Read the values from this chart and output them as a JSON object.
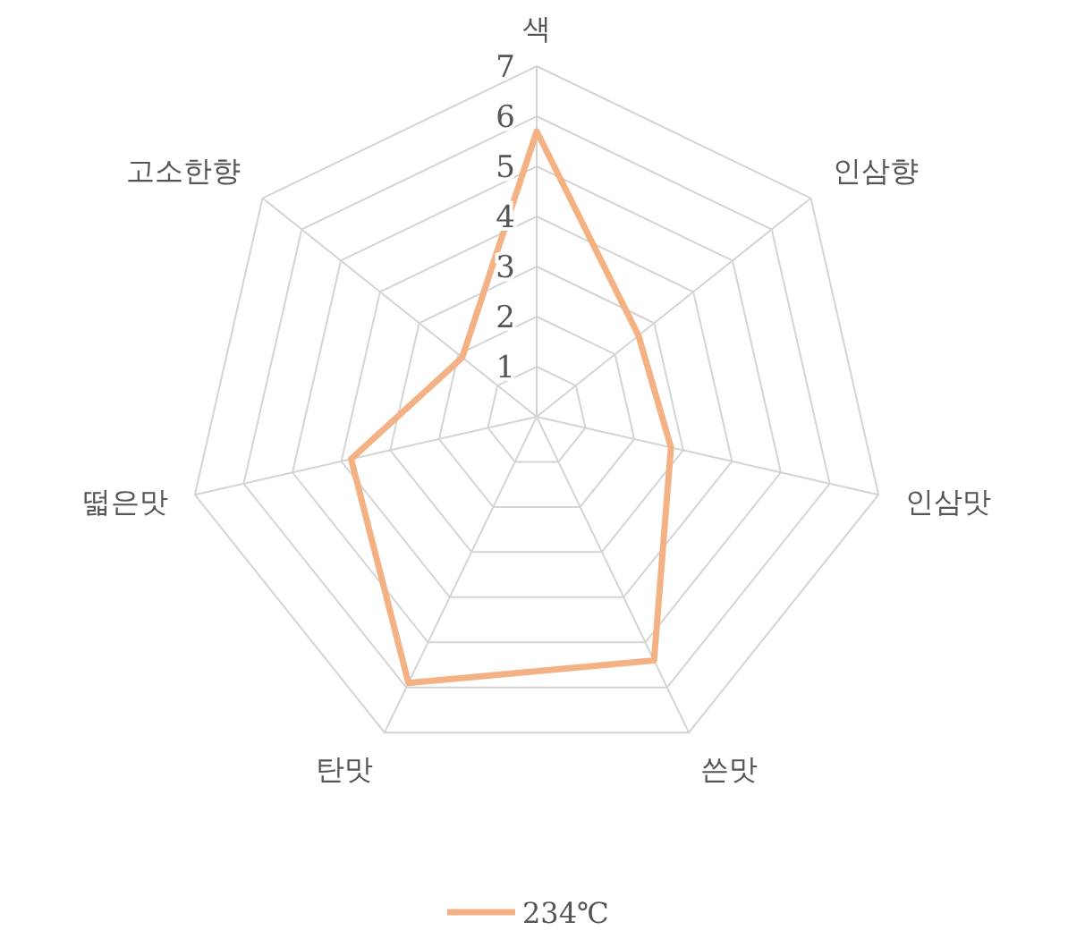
{
  "chart_data": {
    "type": "radar",
    "categories": [
      "색",
      "인삼향",
      "인삼맛",
      "쓴맛",
      "탄맛",
      "떫은맛",
      "고소한향"
    ],
    "series": [
      {
        "name": "234℃",
        "color": "#f4b183",
        "values": [
          5.7,
          2.6,
          2.75,
          5.4,
          5.9,
          3.8,
          1.9
        ]
      }
    ],
    "ylim": [
      0,
      7
    ],
    "yticks": [
      1,
      2,
      3,
      4,
      5,
      6,
      7
    ],
    "grid": true,
    "legend": "bottom",
    "marker": "none"
  }
}
